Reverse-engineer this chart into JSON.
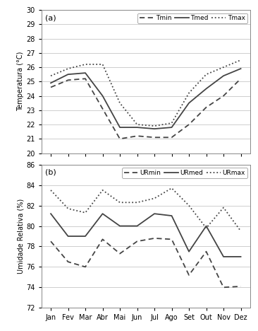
{
  "months": [
    "Jan",
    "Fev",
    "Mar",
    "Abr",
    "Mai",
    "Jun",
    "Jul",
    "Ago",
    "Set",
    "Out",
    "Nov",
    "Dez"
  ],
  "temp_tmin": [
    24.6,
    25.1,
    25.2,
    23.1,
    21.0,
    21.2,
    21.1,
    21.1,
    22.0,
    23.2,
    24.0,
    25.2
  ],
  "temp_tmed": [
    24.9,
    25.5,
    25.6,
    24.0,
    21.8,
    21.8,
    21.7,
    21.8,
    23.5,
    24.5,
    25.4,
    25.9
  ],
  "temp_tmax": [
    25.4,
    25.9,
    26.2,
    26.2,
    23.5,
    22.0,
    21.9,
    22.1,
    24.2,
    25.5,
    26.0,
    26.5
  ],
  "temp_ylim": [
    20,
    30
  ],
  "temp_yticks": [
    20,
    21,
    22,
    23,
    24,
    25,
    26,
    27,
    28,
    29,
    30
  ],
  "temp_ylabel": "Temperatura (°C)",
  "ur_urmin": [
    78.5,
    76.5,
    76.0,
    78.7,
    77.3,
    78.5,
    78.8,
    78.7,
    75.2,
    77.5,
    74.0,
    74.1
  ],
  "ur_urmed": [
    81.2,
    79.0,
    79.0,
    81.2,
    80.0,
    80.0,
    81.2,
    81.0,
    77.5,
    80.0,
    77.0,
    77.0
  ],
  "ur_urmax": [
    83.5,
    81.7,
    81.3,
    83.5,
    82.3,
    82.3,
    82.7,
    83.7,
    82.0,
    79.8,
    81.8,
    79.5
  ],
  "ur_ylim": [
    72,
    86
  ],
  "ur_yticks": [
    72,
    74,
    76,
    78,
    80,
    82,
    84,
    86
  ],
  "ur_ylabel": "Umidade Relativa (%)",
  "line_color": "#444444",
  "bg_color": "#ffffff",
  "label_tmin": "Tmin",
  "label_tmed": "Tmed",
  "label_tmax": "Tmax",
  "label_urmin": "URmin",
  "label_urmed": "URmed",
  "label_urmax": "URmax",
  "panel_a": "(a)",
  "panel_b": "(b)"
}
